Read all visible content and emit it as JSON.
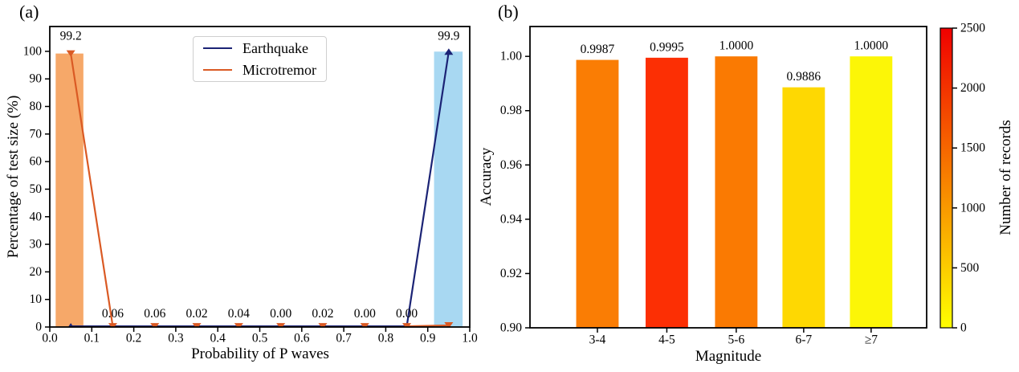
{
  "chart_data": {
    "panel_a": {
      "type": "bar",
      "subtype": "histogram bars + line with triangle markers",
      "tag": "(a)",
      "xlabel": "Probability of P waves",
      "ylabel": "Percentage of test size (%)",
      "xlim": [
        0.0,
        1.0
      ],
      "ylim": [
        0,
        109
      ],
      "grid": false,
      "legend_position": "upper center-right, boxed",
      "xticks": [
        {
          "v": 0.0,
          "label": "0.0"
        },
        {
          "v": 0.1,
          "label": "0.1"
        },
        {
          "v": 0.2,
          "label": "0.2"
        },
        {
          "v": 0.3,
          "label": "0.3"
        },
        {
          "v": 0.4,
          "label": "0.4"
        },
        {
          "v": 0.5,
          "label": "0.5"
        },
        {
          "v": 0.6,
          "label": "0.6"
        },
        {
          "v": 0.7,
          "label": "0.7"
        },
        {
          "v": 0.8,
          "label": "0.8"
        },
        {
          "v": 0.9,
          "label": "0.9"
        },
        {
          "v": 1.0,
          "label": "1.0"
        }
      ],
      "yticks": [
        {
          "v": 0,
          "label": "0"
        },
        {
          "v": 10,
          "label": "10"
        },
        {
          "v": 20,
          "label": "20"
        },
        {
          "v": 30,
          "label": "30"
        },
        {
          "v": 40,
          "label": "40"
        },
        {
          "v": 50,
          "label": "50"
        },
        {
          "v": 60,
          "label": "60"
        },
        {
          "v": 70,
          "label": "70"
        },
        {
          "v": 80,
          "label": "80"
        },
        {
          "v": 90,
          "label": "90"
        },
        {
          "v": 100,
          "label": "100"
        }
      ],
      "bin_centers": [
        0.05,
        0.15,
        0.25,
        0.35,
        0.45,
        0.55,
        0.65,
        0.75,
        0.85,
        0.95
      ],
      "series": [
        {
          "name": "Earthquake",
          "line_color": "#1B2375",
          "marker": "triangle-up",
          "values": [
            0.0,
            0.0,
            0.0,
            0.0,
            0.0,
            0.0,
            0.02,
            0.0,
            0.0,
            99.9
          ],
          "bar": {
            "center": 0.949,
            "width": 0.068,
            "height": 99.9,
            "fill": "#A8D8F2"
          }
        },
        {
          "name": "Microtremor",
          "line_color": "#DA5A24",
          "marker": "triangle-down",
          "values": [
            99.2,
            0.06,
            0.06,
            0.02,
            0.04,
            0.1,
            0.1,
            0.1,
            0.1,
            0.6
          ],
          "bar": {
            "center": 0.047,
            "width": 0.066,
            "height": 99.2,
            "fill": "#F6A869"
          }
        }
      ],
      "annotations": [
        {
          "text": "99.2",
          "x": 0.05,
          "y": 105.5,
          "color": "#C75A26"
        },
        {
          "text": "0.06",
          "x": 0.15,
          "y": 4.8,
          "color": "#C75A26"
        },
        {
          "text": "0.06",
          "x": 0.25,
          "y": 4.8,
          "color": "#C75A26"
        },
        {
          "text": "0.02",
          "x": 0.35,
          "y": 4.8,
          "color": "#C75A26"
        },
        {
          "text": "0.04",
          "x": 0.45,
          "y": 4.8,
          "color": "#C75A26"
        },
        {
          "text": "0.00",
          "x": 0.55,
          "y": 4.8,
          "color": "#223390"
        },
        {
          "text": "0.02",
          "x": 0.65,
          "y": 4.8,
          "color": "#223390"
        },
        {
          "text": "0.00",
          "x": 0.75,
          "y": 4.8,
          "color": "#223390"
        },
        {
          "text": "0.00",
          "x": 0.85,
          "y": 4.8,
          "color": "#223390"
        },
        {
          "text": "99.9",
          "x": 0.95,
          "y": 105.5,
          "color": "#223390"
        }
      ]
    },
    "panel_b": {
      "type": "bar",
      "tag": "(b)",
      "xlabel": "Magnitude",
      "ylabel": "Accuracy",
      "ylim": [
        0.9,
        1.011
      ],
      "grid": false,
      "categories": [
        "3-4",
        "4-5",
        "5-6",
        "6-7",
        "≥7"
      ],
      "values": [
        0.9987,
        0.9995,
        1.0,
        0.9886,
        1.0
      ],
      "value_labels": [
        "0.9987",
        "0.9995",
        "1.0000",
        "0.9886",
        "1.0000"
      ],
      "bar_colors": [
        "#FA7D04",
        "#FC2F04",
        "#FA7A02",
        "#FED802",
        "#FCF607"
      ],
      "records_estimated_from_color": [
        1270,
        2050,
        1300,
        380,
        90
      ],
      "bar_centers_frac": [
        0.17,
        0.345,
        0.52,
        0.69,
        0.86
      ],
      "bar_width_frac": 0.107,
      "yticks": [
        {
          "v": 0.9,
          "label": "0.90"
        },
        {
          "v": 0.92,
          "label": "0.92"
        },
        {
          "v": 0.94,
          "label": "0.94"
        },
        {
          "v": 0.96,
          "label": "0.96"
        },
        {
          "v": 0.98,
          "label": "0.98"
        },
        {
          "v": 1.0,
          "label": "1.00"
        }
      ],
      "colorbar": {
        "label": "Number of records",
        "min": 0,
        "max": 2500,
        "ticks": [
          0,
          500,
          1000,
          1500,
          2000,
          2500
        ],
        "bottom_color": "#FFFF00",
        "top_color": "#F00000",
        "colormap": "yellow-orange-red (autumn reversed)"
      }
    }
  }
}
